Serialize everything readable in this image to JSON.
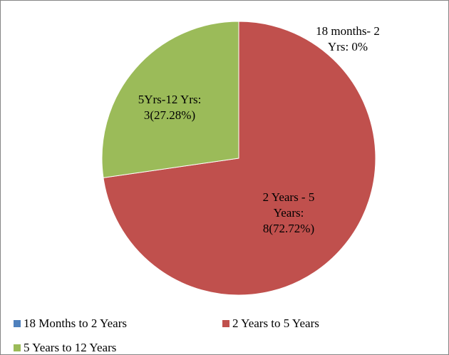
{
  "chart_data": {
    "type": "pie",
    "categories": [
      "18 Months to 2 Years",
      "2 Years to 5 Years",
      "5 Years to 12 Years"
    ],
    "values": [
      0,
      8,
      3
    ],
    "value_labels": [
      "18 months- 2 Yrs: 0%",
      "2 Years - 5 Years: 8(72.72%)",
      "5Yrs-12 Yrs: 3(27.28%)"
    ],
    "colors": [
      "#4f81bd",
      "#c0504d",
      "#9bbb59"
    ]
  }
}
